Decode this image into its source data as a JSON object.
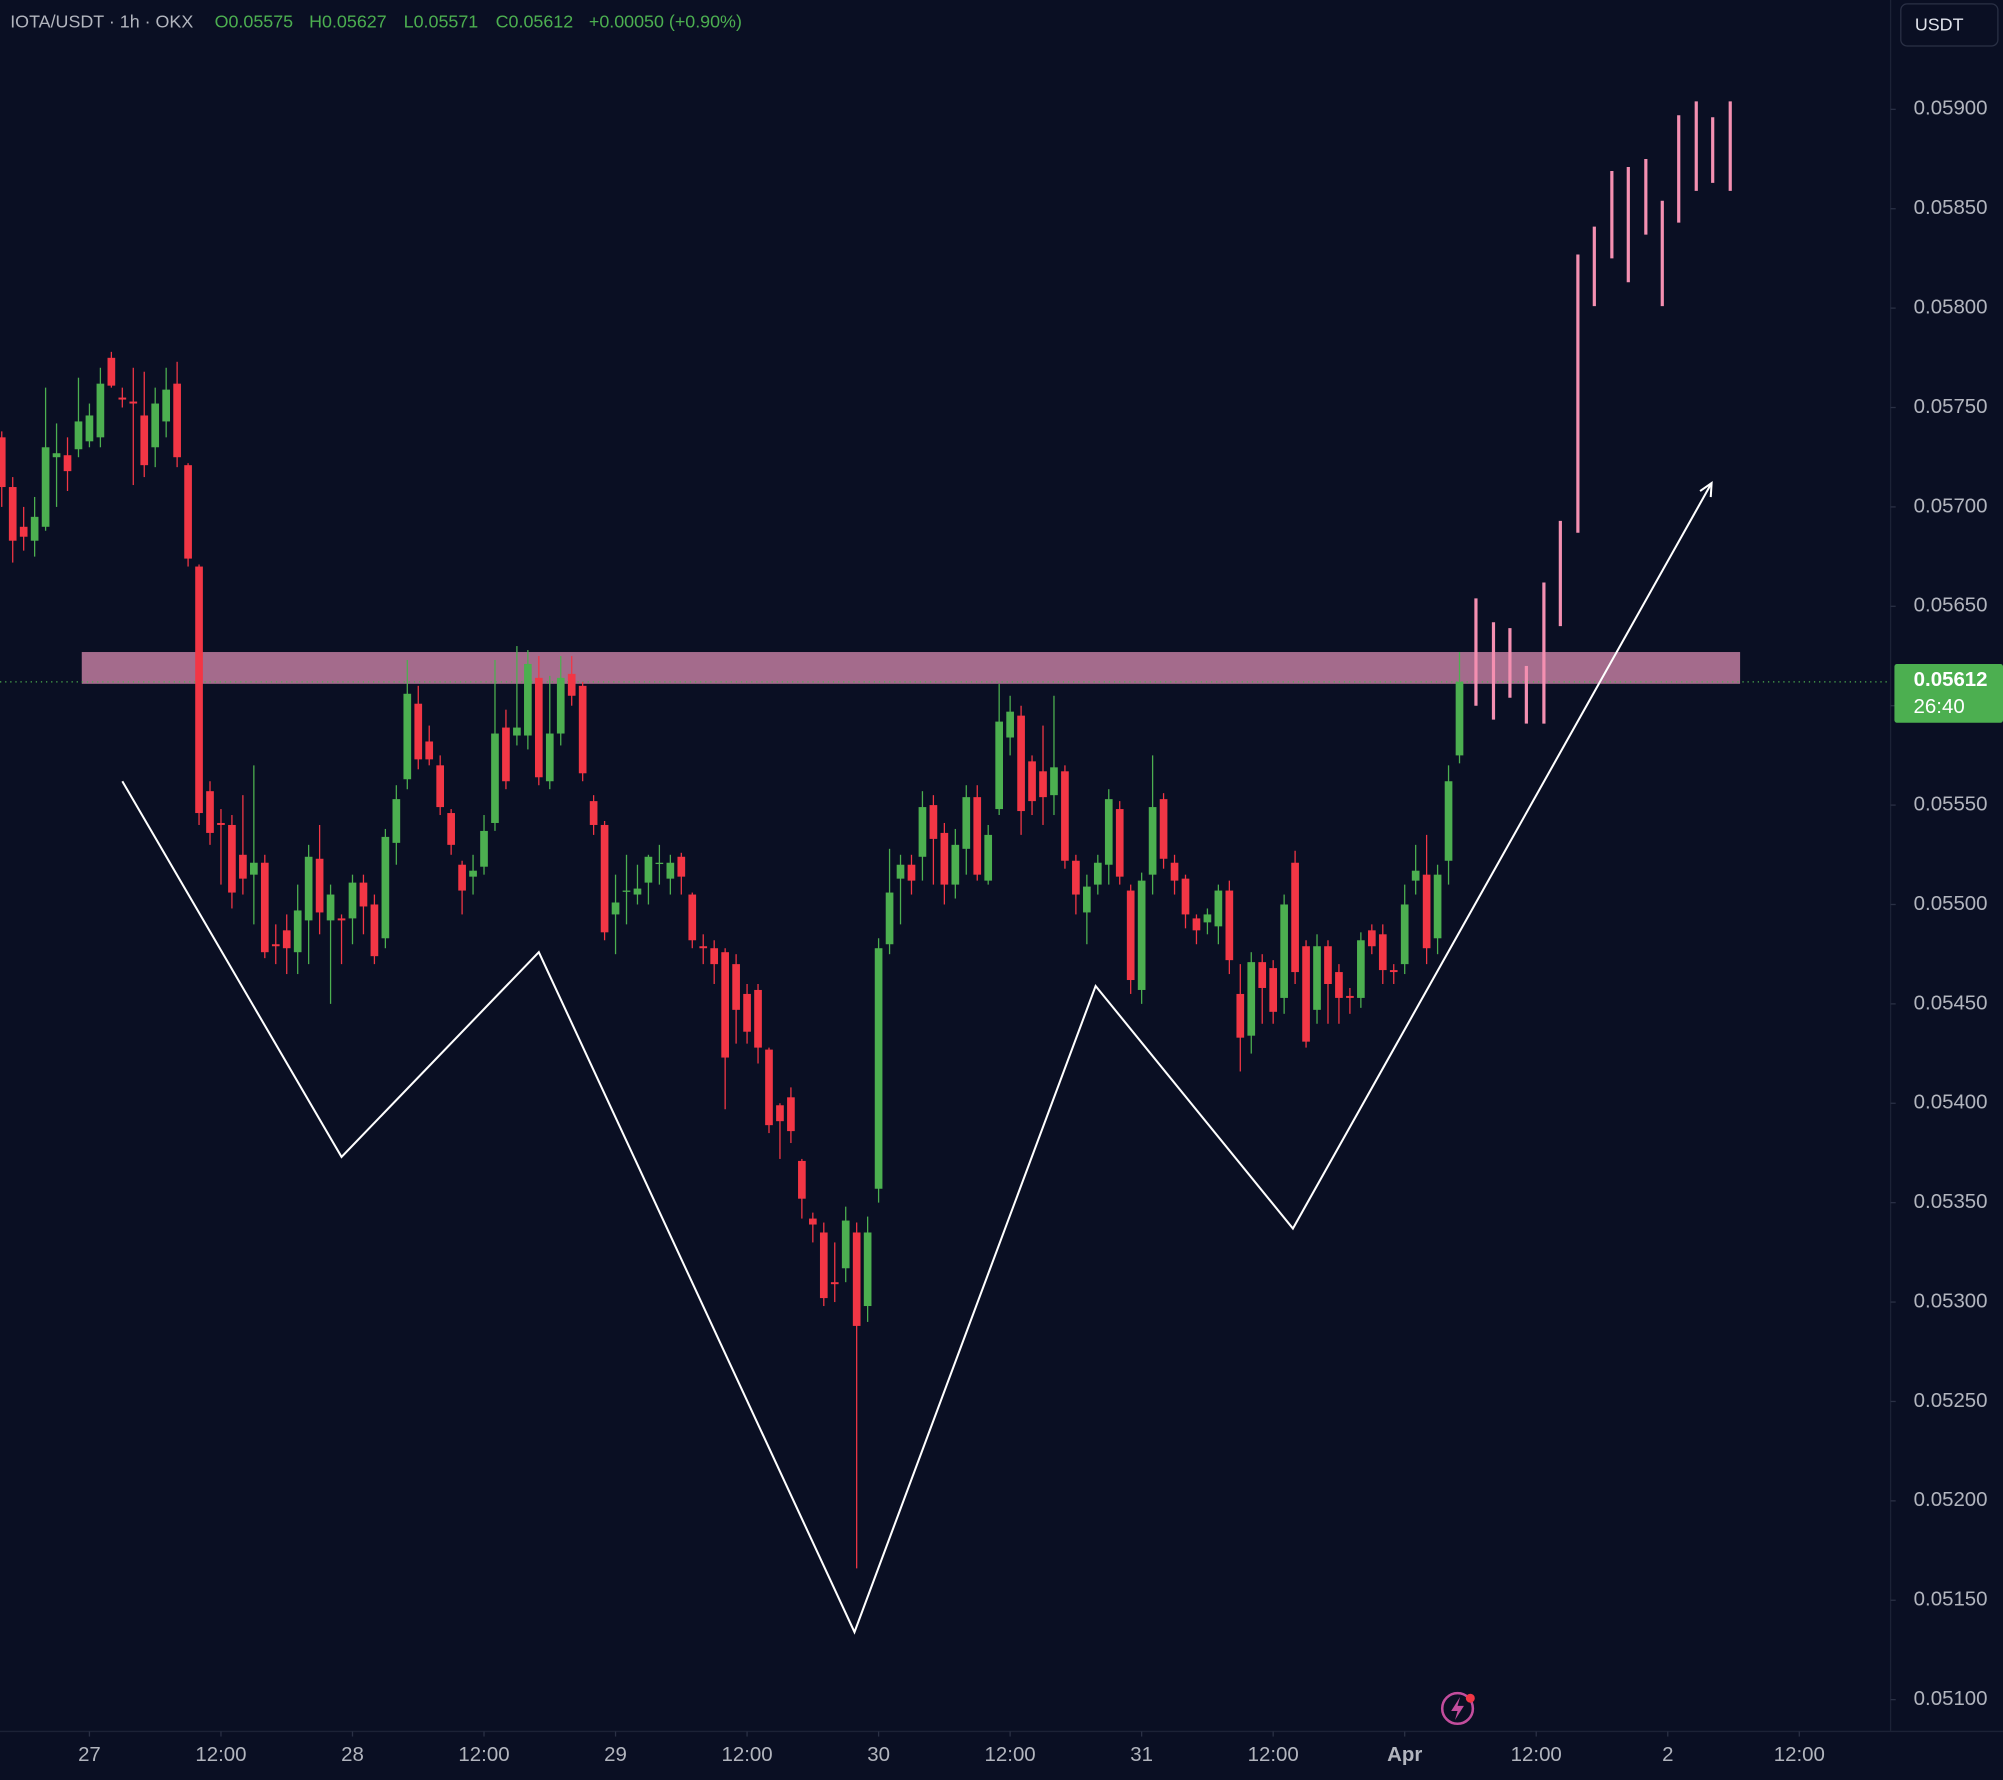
{
  "chart_data": {
    "type": "candlestick",
    "title": "IOTA/USDT · 1h · OKX",
    "ohlc_labels": [
      "O0.05575",
      "H0.05627",
      "L0.05571",
      "C0.05612"
    ],
    "change_label": "+0.00050 (+0.90%)",
    "currency": "USDT",
    "up_color": "#4caf50",
    "down_color": "#f23645",
    "open": [
      0.05735,
      0.0571,
      0.0569,
      0.05683,
      0.0569,
      0.05725,
      0.05726,
      0.05729,
      0.05733,
      0.05735,
      0.05775,
      0.05755,
      0.05753,
      0.05746,
      0.0573,
      0.05743,
      0.05762,
      0.05721,
      0.0567,
      0.05557,
      0.05541,
      0.0554,
      0.05525,
      0.05515,
      0.05521,
      0.0548,
      0.05487,
      0.05476,
      0.05492,
      0.05523,
      0.05492,
      0.05493,
      0.05493,
      0.05511,
      0.055,
      0.05483,
      0.05531,
      0.05563,
      0.05601,
      0.05582,
      0.0557,
      0.05546,
      0.0552,
      0.05514,
      0.05519,
      0.05541,
      0.05589,
      0.05585,
      0.05585,
      0.05614,
      0.05562,
      0.05586,
      0.05616,
      0.0561,
      0.05552,
      0.0554,
      0.05495,
      0.05507,
      0.05505,
      0.05511,
      0.05521,
      0.05513,
      0.05524,
      0.05505,
      0.05479,
      0.05478,
      0.05476,
      0.0547,
      0.05455,
      0.05457,
      0.05427,
      0.05399,
      0.05403,
      0.05371,
      0.05342,
      0.05335,
      0.0531,
      0.05317,
      0.05335,
      0.05298,
      0.05357,
      0.0548,
      0.05513,
      0.0552,
      0.05524,
      0.0555,
      0.05536,
      0.0551,
      0.05528,
      0.05554,
      0.05512,
      0.05548,
      0.05584,
      0.05595,
      0.05572,
      0.05567,
      0.05555,
      0.05567,
      0.05522,
      0.05496,
      0.0551,
      0.0552,
      0.05548,
      0.05507,
      0.05457,
      0.05515,
      0.05553,
      0.05521,
      0.05513,
      0.05493,
      0.05491,
      0.05489,
      0.05507,
      0.05455,
      0.05434,
      0.05471,
      0.05468,
      0.05453,
      0.05521,
      0.05479,
      0.05447,
      0.05479,
      0.05466,
      0.05454,
      0.05453,
      0.05487,
      0.05485,
      0.05467,
      0.0547,
      0.05512,
      0.05515,
      0.05483,
      0.05522,
      0.05575
    ],
    "high": [
      0.05738,
      0.05715,
      0.057,
      0.05705,
      0.0576,
      0.05742,
      0.05735,
      0.05765,
      0.05752,
      0.0577,
      0.05778,
      0.0576,
      0.0577,
      0.05768,
      0.0576,
      0.0577,
      0.05773,
      0.05722,
      0.05671,
      0.05562,
      0.05548,
      0.05545,
      0.05555,
      0.0557,
      0.05525,
      0.0549,
      0.05495,
      0.0551,
      0.0553,
      0.0554,
      0.0551,
      0.05495,
      0.05515,
      0.05515,
      0.05505,
      0.05538,
      0.0556,
      0.05623,
      0.0561,
      0.0559,
      0.05575,
      0.05548,
      0.05522,
      0.05525,
      0.05545,
      0.05623,
      0.05598,
      0.0563,
      0.05628,
      0.05625,
      0.05615,
      0.05625,
      0.05625,
      0.05612,
      0.05555,
      0.05542,
      0.05515,
      0.05525,
      0.0552,
      0.05525,
      0.0553,
      0.05525,
      0.05526,
      0.05506,
      0.05485,
      0.05482,
      0.05478,
      0.05475,
      0.0546,
      0.0546,
      0.05428,
      0.054,
      0.05408,
      0.05372,
      0.05345,
      0.0534,
      0.0533,
      0.05348,
      0.0534,
      0.05343,
      0.05483,
      0.05528,
      0.05525,
      0.05525,
      0.05557,
      0.05555,
      0.05541,
      0.05538,
      0.0556,
      0.0556,
      0.0554,
      0.05611,
      0.05605,
      0.056,
      0.05575,
      0.0559,
      0.05605,
      0.0557,
      0.05525,
      0.05515,
      0.05525,
      0.05558,
      0.05552,
      0.0551,
      0.05516,
      0.05575,
      0.05556,
      0.05525,
      0.05515,
      0.05495,
      0.05498,
      0.0551,
      0.05512,
      0.0547,
      0.05476,
      0.05475,
      0.05472,
      0.05505,
      0.05527,
      0.05482,
      0.05485,
      0.05482,
      0.0547,
      0.05458,
      0.05486,
      0.0549,
      0.0549,
      0.0547,
      0.0551,
      0.0553,
      0.05535,
      0.0552,
      0.0557,
      0.05627
    ],
    "low": [
      0.057,
      0.05672,
      0.05678,
      0.05675,
      0.05688,
      0.057,
      0.05708,
      0.05725,
      0.0573,
      0.0573,
      0.0576,
      0.0575,
      0.05711,
      0.05715,
      0.0572,
      0.05735,
      0.0572,
      0.0567,
      0.0554,
      0.0553,
      0.0551,
      0.05498,
      0.05505,
      0.0549,
      0.05473,
      0.0547,
      0.05465,
      0.05465,
      0.0547,
      0.05485,
      0.0545,
      0.0547,
      0.0548,
      0.05485,
      0.0547,
      0.05478,
      0.0552,
      0.05558,
      0.05568,
      0.0557,
      0.05545,
      0.05525,
      0.05495,
      0.05505,
      0.05515,
      0.05537,
      0.05558,
      0.0558,
      0.05578,
      0.0556,
      0.05558,
      0.0558,
      0.056,
      0.05562,
      0.05535,
      0.05482,
      0.05475,
      0.0549,
      0.055,
      0.055,
      0.0551,
      0.05505,
      0.05505,
      0.05478,
      0.0547,
      0.0546,
      0.05397,
      0.0543,
      0.0543,
      0.0542,
      0.05385,
      0.05372,
      0.0538,
      0.05342,
      0.0533,
      0.05298,
      0.053,
      0.0531,
      0.05166,
      0.0529,
      0.0535,
      0.05475,
      0.0549,
      0.05505,
      0.05512,
      0.0551,
      0.055,
      0.05503,
      0.05515,
      0.05512,
      0.0551,
      0.05545,
      0.05575,
      0.05535,
      0.05545,
      0.0554,
      0.05545,
      0.05518,
      0.05495,
      0.0548,
      0.05505,
      0.0551,
      0.0551,
      0.05455,
      0.0545,
      0.05505,
      0.05518,
      0.05505,
      0.05488,
      0.0548,
      0.05485,
      0.0548,
      0.05465,
      0.05416,
      0.05425,
      0.0544,
      0.0544,
      0.05445,
      0.0546,
      0.05428,
      0.0544,
      0.0544,
      0.0544,
      0.05445,
      0.05448,
      0.05475,
      0.0546,
      0.0546,
      0.05465,
      0.05505,
      0.0547,
      0.05475,
      0.0551,
      0.05571
    ],
    "close": [
      0.0571,
      0.05683,
      0.05685,
      0.05695,
      0.0573,
      0.05727,
      0.05718,
      0.05743,
      0.05746,
      0.05762,
      0.05761,
      0.05754,
      0.05752,
      0.05721,
      0.05752,
      0.05759,
      0.05725,
      0.05674,
      0.05546,
      0.05536,
      0.0554,
      0.05506,
      0.05513,
      0.05521,
      0.05476,
      0.05479,
      0.05478,
      0.05497,
      0.05524,
      0.05496,
      0.05505,
      0.05492,
      0.05511,
      0.05499,
      0.05474,
      0.05534,
      0.05553,
      0.05606,
      0.05573,
      0.05573,
      0.05549,
      0.0553,
      0.05507,
      0.05517,
      0.05537,
      0.05586,
      0.05562,
      0.05589,
      0.05621,
      0.05564,
      0.05586,
      0.05614,
      0.05605,
      0.05566,
      0.0554,
      0.05486,
      0.05501,
      0.05507,
      0.05508,
      0.05524,
      0.05521,
      0.05521,
      0.05514,
      0.05482,
      0.05478,
      0.0547,
      0.05423,
      0.05447,
      0.05436,
      0.05428,
      0.05389,
      0.05391,
      0.05386,
      0.05352,
      0.05339,
      0.05302,
      0.05309,
      0.05341,
      0.05288,
      0.05335,
      0.05478,
      0.05506,
      0.0552,
      0.05512,
      0.05549,
      0.05533,
      0.0551,
      0.0553,
      0.05554,
      0.05515,
      0.05535,
      0.05592,
      0.05597,
      0.05547,
      0.05552,
      0.05554,
      0.05569,
      0.05522,
      0.05505,
      0.05509,
      0.05521,
      0.05553,
      0.05514,
      0.05462,
      0.05512,
      0.05549,
      0.05523,
      0.05512,
      0.05495,
      0.05487,
      0.05495,
      0.05507,
      0.05472,
      0.05433,
      0.05471,
      0.05458,
      0.05446,
      0.055,
      0.05466,
      0.05431,
      0.05479,
      0.0546,
      0.05453,
      0.05453,
      0.05482,
      0.05479,
      0.05467,
      0.05466,
      0.055,
      0.05517,
      0.05478,
      0.05515,
      0.05562,
      0.05612
    ],
    "xlim": [
      -0.16,
      172.33
    ],
    "xticks": [
      {
        "value": 8,
        "label": "27"
      },
      {
        "value": 20,
        "label": "12:00"
      },
      {
        "value": 32,
        "label": "28"
      },
      {
        "value": 44,
        "label": "12:00"
      },
      {
        "value": 56,
        "label": "29"
      },
      {
        "value": 68,
        "label": "12:00"
      },
      {
        "value": 80,
        "label": "30"
      },
      {
        "value": 92,
        "label": "12:00"
      },
      {
        "value": 104,
        "label": "31"
      },
      {
        "value": 116,
        "label": "12:00"
      },
      {
        "value": 128,
        "label": "Apr"
      },
      {
        "value": 140,
        "label": "12:00"
      },
      {
        "value": 152,
        "label": "2"
      },
      {
        "value": 164,
        "label": "12:00"
      }
    ],
    "ylim": [
      0.05084,
      0.05955
    ],
    "yticks": [
      {
        "value": 0.059,
        "label": "0.05900"
      },
      {
        "value": 0.0585,
        "label": "0.05850"
      },
      {
        "value": 0.058,
        "label": "0.05800"
      },
      {
        "value": 0.0575,
        "label": "0.05750"
      },
      {
        "value": 0.057,
        "label": "0.05700"
      },
      {
        "value": 0.0565,
        "label": "0.05650"
      },
      {
        "value": 0.056,
        "label": "0.05600"
      },
      {
        "value": 0.0555,
        "label": "0.05550"
      },
      {
        "value": 0.055,
        "label": "0.05500"
      },
      {
        "value": 0.0545,
        "label": "0.05450"
      },
      {
        "value": 0.054,
        "label": "0.05400"
      },
      {
        "value": 0.0535,
        "label": "0.05350"
      },
      {
        "value": 0.053,
        "label": "0.05300"
      },
      {
        "value": 0.0525,
        "label": "0.05250"
      },
      {
        "value": 0.052,
        "label": "0.05200"
      },
      {
        "value": 0.0515,
        "label": "0.05150"
      },
      {
        "value": 0.051,
        "label": "0.05100"
      }
    ],
    "grid": false,
    "last_price": {
      "value": 0.05612,
      "label": "0.05612",
      "countdown": "26:40",
      "color": "#4caf50"
    },
    "zone": {
      "x": [
        7.3,
        158.6
      ],
      "y": [
        0.05611,
        0.05627
      ],
      "color": "#d88bb0"
    },
    "pattern": {
      "x": [
        11.0,
        31.0,
        49.0,
        77.8,
        99.8,
        117.8,
        156.0
      ],
      "y": [
        0.05562,
        0.05373,
        0.05476,
        0.05134,
        0.05459,
        0.05337,
        0.05712
      ],
      "color": "#ffffff"
    },
    "projection": {
      "color": "#f48fb1",
      "x": [
        134.5,
        136.1,
        137.6,
        139.1,
        140.7,
        142.2,
        143.8,
        145.3,
        146.9,
        148.4,
        150,
        151.5,
        153,
        154.6,
        156.1,
        157.7
      ],
      "high": [
        0.05654,
        0.05642,
        0.05639,
        0.0562,
        0.05662,
        0.05693,
        0.05827,
        0.05841,
        0.05869,
        0.05871,
        0.05875,
        0.05854,
        0.05897,
        0.05904,
        0.05896,
        0.05904
      ],
      "low": [
        0.056,
        0.05593,
        0.05604,
        0.05591,
        0.05591,
        0.0564,
        0.05687,
        0.05801,
        0.05825,
        0.05813,
        0.05837,
        0.05801,
        0.05843,
        0.05859,
        0.05863,
        0.05859
      ]
    }
  }
}
